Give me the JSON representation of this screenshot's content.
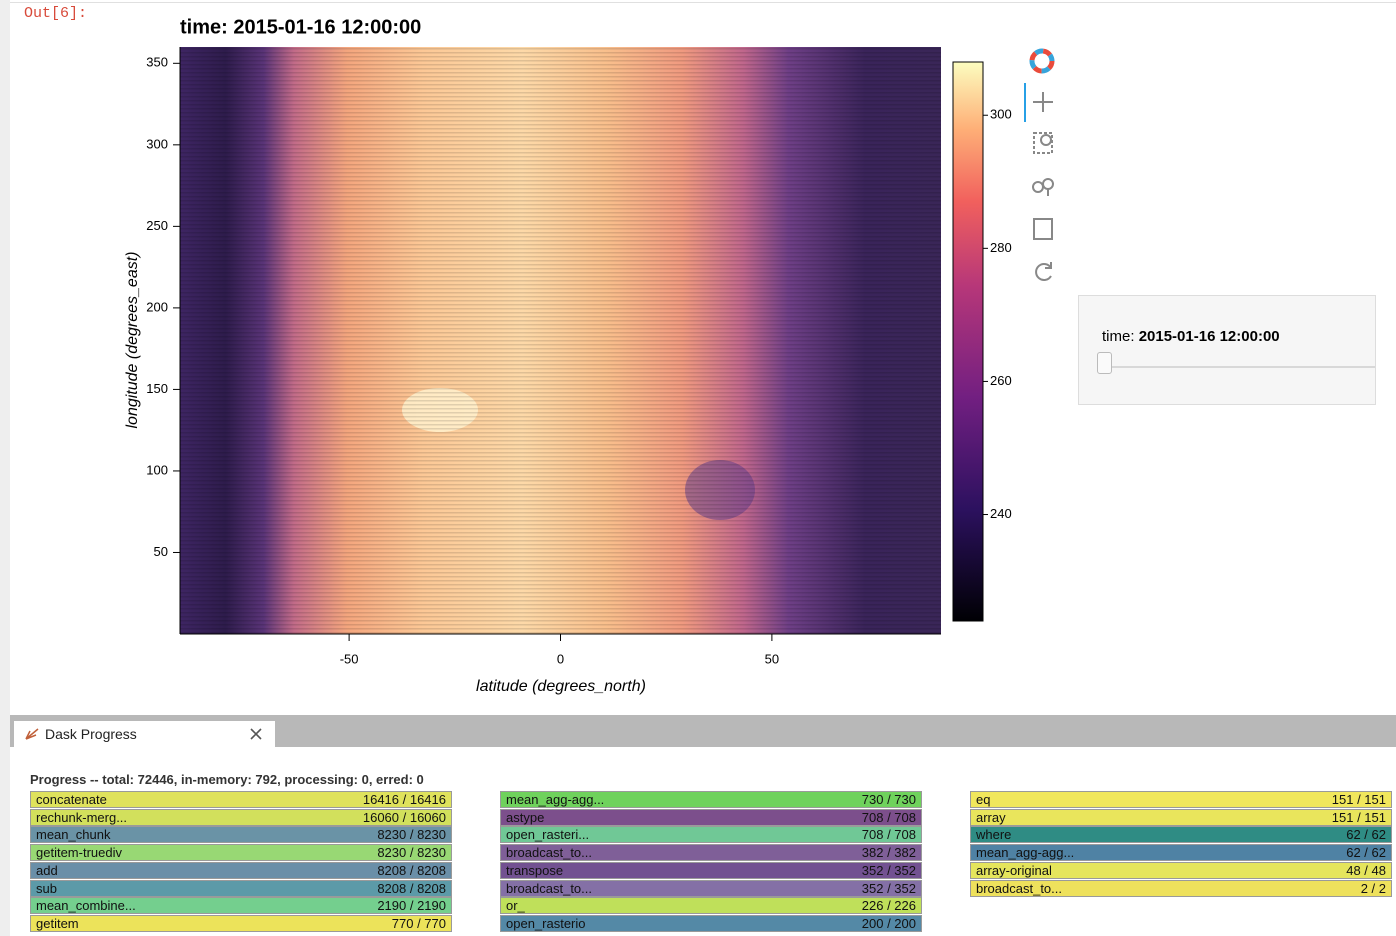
{
  "notebook": {
    "out_label": "Out[6]:"
  },
  "plot": {
    "title": "time: 2015-01-16 12:00:00",
    "xlabel": "latitude (degrees_north)",
    "ylabel": "longitude (degrees_east)",
    "xlim": [
      -90,
      90
    ],
    "xticks": [
      -50,
      0,
      50
    ],
    "ylim": [
      0,
      360
    ],
    "yticks": [
      50,
      100,
      150,
      200,
      250,
      300,
      350
    ],
    "clim": [
      224,
      308
    ],
    "cticks": [
      240,
      260,
      280,
      300
    ]
  },
  "slider": {
    "label": "time:",
    "value": "2015-01-16 12:00:00"
  },
  "dask_progress": {
    "tab": "Dask Progress",
    "summary": "Progress -- total: 72446, in-memory: 792, processing: 0, erred: 0",
    "columns": [
      [
        {
          "name": "concatenate",
          "progress": "16416 / 16416",
          "color": "#dfe25c"
        },
        {
          "name": "rechunk-merg...",
          "progress": "16060 / 16060",
          "color": "#d2e05c"
        },
        {
          "name": "mean_chunk",
          "progress": "8230 / 8230",
          "color": "#6a93a6"
        },
        {
          "name": "getitem-truediv",
          "progress": "8230 / 8230",
          "color": "#98d874"
        },
        {
          "name": "add",
          "progress": "8208 / 8208",
          "color": "#6a8fa8"
        },
        {
          "name": "sub",
          "progress": "8208 / 8208",
          "color": "#5c9aa8"
        },
        {
          "name": "mean_combine...",
          "progress": "2190 / 2190",
          "color": "#74cf8e"
        },
        {
          "name": "getitem",
          "progress": "770 / 770",
          "color": "#ece35a"
        }
      ],
      [
        {
          "name": "mean_agg-agg...",
          "progress": "730 / 730",
          "color": "#6fd25c"
        },
        {
          "name": "astype",
          "progress": "708 / 708",
          "color": "#7c4f8c"
        },
        {
          "name": "open_rasteri...",
          "progress": "708 / 708",
          "color": "#70c896"
        },
        {
          "name": "broadcast_to...",
          "progress": "382 / 382",
          "color": "#7f5f98"
        },
        {
          "name": "transpose",
          "progress": "352 / 352",
          "color": "#725191"
        },
        {
          "name": "broadcast_to...",
          "progress": "352 / 352",
          "color": "#8470a6"
        },
        {
          "name": "or_",
          "progress": "226 / 226",
          "color": "#bfe05a"
        },
        {
          "name": "open_rasterio",
          "progress": "200 / 200",
          "color": "#5489a6"
        }
      ],
      [
        {
          "name": "eq",
          "progress": "151 / 151",
          "color": "#f1e75c"
        },
        {
          "name": "array",
          "progress": "151 / 151",
          "color": "#e9e55c"
        },
        {
          "name": "where",
          "progress": "62 / 62",
          "color": "#2f8c84"
        },
        {
          "name": "mean_agg-agg...",
          "progress": "62 / 62",
          "color": "#4f82a4"
        },
        {
          "name": "array-original",
          "progress": "48 / 48",
          "color": "#e5e55c"
        },
        {
          "name": "broadcast_to...",
          "progress": "2 / 2",
          "color": "#eee15c"
        }
      ]
    ]
  }
}
